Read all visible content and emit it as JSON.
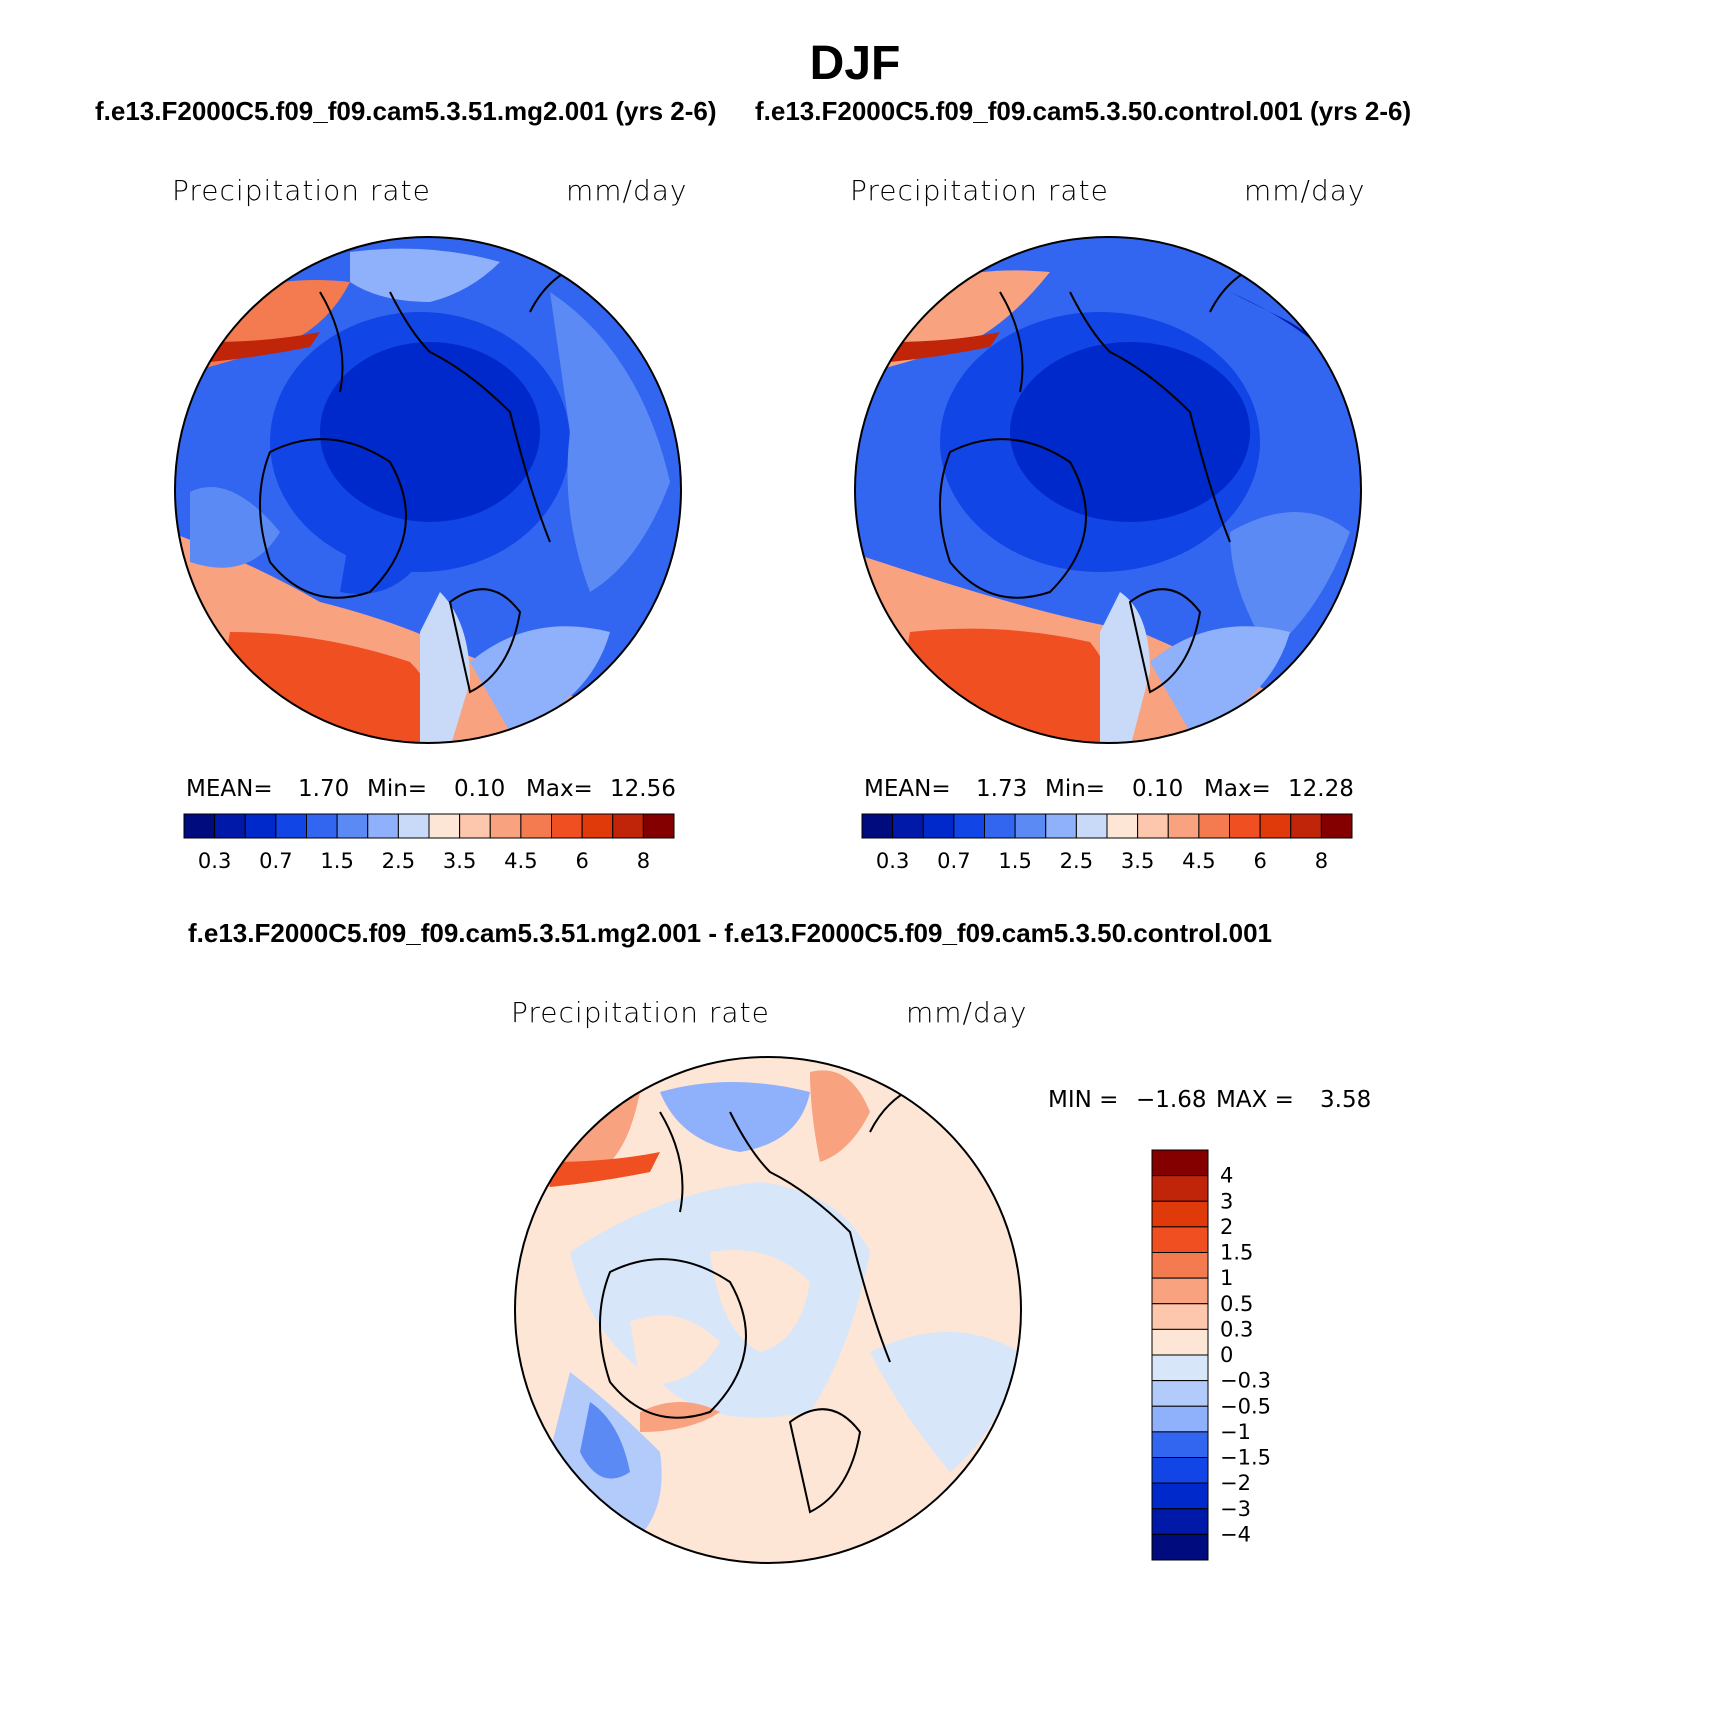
{
  "title": "DJF",
  "panels": [
    {
      "case": "f.e13.F2000C5.f09_f09.cam5.3.51.mg2.001 (yrs 2-6)",
      "variable": "Precipitation  rate",
      "units": "mm/day",
      "stats": {
        "mean_label": "MEAN=",
        "mean": "1.70",
        "min_label": "Min=",
        "min": "0.10",
        "max_label": "Max=",
        "max": "12.56"
      }
    },
    {
      "case": "f.e13.F2000C5.f09_f09.cam5.3.50.control.001 (yrs 2-6)",
      "variable": "Precipitation  rate",
      "units": "mm/day",
      "stats": {
        "mean_label": "MEAN=",
        "mean": "1.73",
        "min_label": "Min=",
        "min": "0.10",
        "max_label": "Max=",
        "max": "12.28"
      }
    }
  ],
  "diff": {
    "title": "f.e13.F2000C5.f09_f09.cam5.3.51.mg2.001 - f.e13.F2000C5.f09_f09.cam5.3.50.control.001",
    "variable": "Precipitation  rate",
    "units": "mm/day",
    "stats": {
      "min_label": "MIN =",
      "min": "−1.68",
      "max_label": "MAX =",
      "max": "3.58"
    }
  },
  "colorbar_abs": {
    "colors": [
      "#000c7e",
      "#0019a8",
      "#0029cc",
      "#1245e6",
      "#3366f0",
      "#5c8af5",
      "#8fb0fa",
      "#c8daf8",
      "#fde6d5",
      "#fcc7ad",
      "#f8a27f",
      "#f47a4f",
      "#ef4f21",
      "#e0390a",
      "#c02409",
      "#840000"
    ],
    "labels": [
      "0.3",
      "0.7",
      "1.5",
      "2.5",
      "3.5",
      "4.5",
      "6",
      "8"
    ]
  },
  "colorbar_diff": {
    "colors": [
      "#840000",
      "#c02409",
      "#e0390a",
      "#ef4f21",
      "#f47a4f",
      "#f8a27f",
      "#fcc7ad",
      "#fde6d5",
      "#d8e6fa",
      "#b3cbfa",
      "#8fb0fa",
      "#3366f0",
      "#1245e6",
      "#0029cc",
      "#0019a8",
      "#000c7e"
    ],
    "labels": [
      "4",
      "3",
      "2",
      "1.5",
      "1",
      "0.5",
      "0.3",
      "0",
      "−0.3",
      "−0.5",
      "−1",
      "−1.5",
      "−2",
      "−3",
      "−4"
    ]
  }
}
